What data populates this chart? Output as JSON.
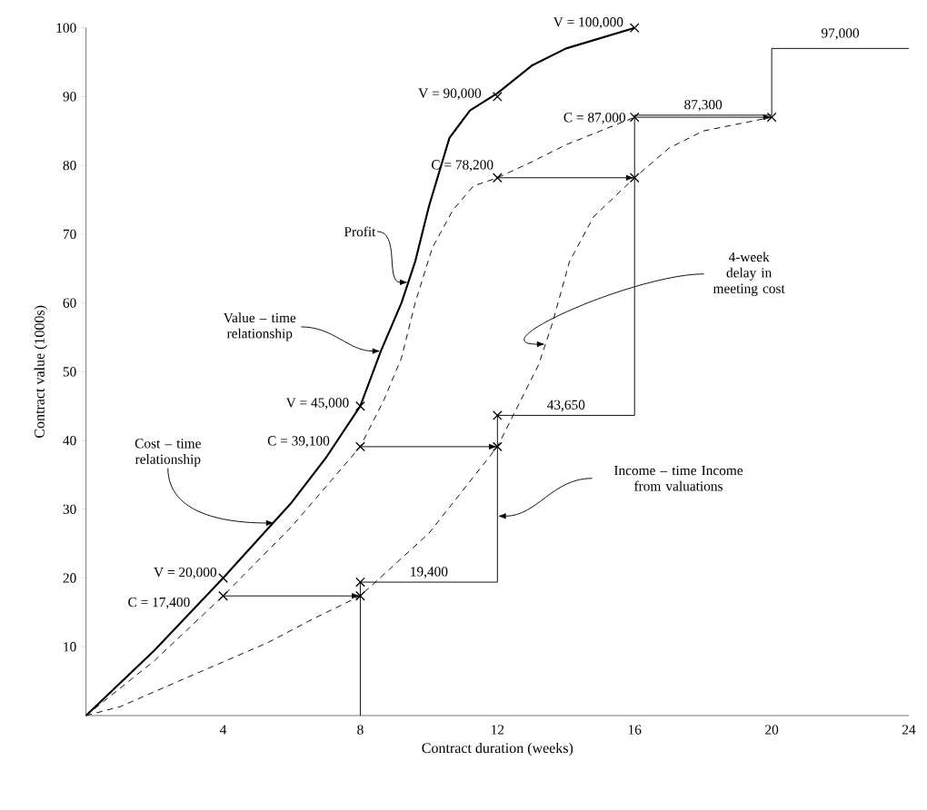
{
  "chart_data": {
    "type": "line",
    "xlabel": "Contract duration (weeks)",
    "ylabel": "Contract value (1000s)",
    "xlim": [
      0,
      24
    ],
    "ylim": [
      0,
      100
    ],
    "xticks": [
      4,
      8,
      12,
      16,
      20,
      24
    ],
    "yticks": [
      10,
      20,
      30,
      40,
      50,
      60,
      70,
      80,
      90,
      100
    ],
    "grid": false,
    "series": [
      {
        "color": "#000000",
        "line_style": "solid",
        "x": [
          0,
          2,
          4,
          6,
          7,
          8,
          8.6,
          9.2,
          9.6,
          10,
          10.6,
          11.2,
          12,
          13,
          14,
          16
        ],
        "values": [
          0,
          9.5,
          20,
          31,
          37.5,
          45,
          53,
          60,
          66,
          74,
          84,
          88,
          90.5,
          94.5,
          97,
          100
        ]
      },
      {
        "color": "#000000",
        "line_style": "dashed",
        "x": [
          0,
          2,
          4,
          6,
          8,
          8.7,
          9.2,
          9.6,
          10.1,
          10.7,
          11.3,
          12,
          13,
          14,
          15,
          16
        ],
        "values": [
          0,
          8,
          17.4,
          27.5,
          39.1,
          46,
          52,
          60,
          68,
          73.5,
          77,
          78.2,
          80.5,
          83,
          85,
          87
        ]
      },
      {
        "color": "#000000",
        "line_style": "dashed",
        "x": [
          0,
          1,
          2.7,
          5.3,
          6.6,
          8,
          10,
          12,
          13.2,
          13.6,
          14.1,
          14.8,
          16,
          17,
          18,
          20
        ],
        "values": [
          0,
          1.3,
          5,
          10.6,
          14,
          17.4,
          26.5,
          39.1,
          51,
          57,
          66,
          72.5,
          78.2,
          82.5,
          85,
          87
        ]
      },
      {
        "color": "#000000",
        "line_style": "solid",
        "x": [
          8,
          8,
          12,
          12,
          16,
          16,
          20,
          20,
          24
        ],
        "values": [
          0,
          19.4,
          19.4,
          43.65,
          43.65,
          87.3,
          87.3,
          97,
          97
        ]
      },
      {
        "color": "#000000",
        "line_style": "solid",
        "x": [
          4,
          8
        ],
        "values": [
          17.4,
          17.4
        ]
      },
      {
        "color": "#000000",
        "line_style": "solid",
        "x": [
          8,
          12
        ],
        "values": [
          39.1,
          39.1
        ]
      },
      {
        "color": "#000000",
        "line_style": "solid",
        "x": [
          12,
          16
        ],
        "values": [
          78.2,
          78.2
        ]
      },
      {
        "color": "#000000",
        "line_style": "solid",
        "x": [
          16,
          20
        ],
        "values": [
          87,
          87
        ]
      },
      {
        "type": "scatter",
        "color": "#000000",
        "marker": "cross",
        "x": [
          4,
          4,
          8,
          8,
          8,
          8,
          12,
          12,
          12,
          12,
          16,
          16,
          16,
          20
        ],
        "values": [
          20,
          17.4,
          45,
          39.1,
          19.4,
          17.4,
          90,
          78.2,
          43.65,
          39.1,
          100,
          87,
          78.2,
          87
        ]
      }
    ],
    "annotations": [
      {
        "text": "V = 100,000",
        "x": 16,
        "y": 100
      },
      {
        "text": "V = 90,000",
        "x": 12,
        "y": 90
      },
      {
        "text": "C = 78,200",
        "x": 12,
        "y": 78.2
      },
      {
        "text": "C = 87,000",
        "x": 16,
        "y": 87
      },
      {
        "text": "87,300",
        "x": 18,
        "y": 87.3
      },
      {
        "text": "97,000",
        "x": 22,
        "y": 97
      },
      {
        "text": "V = 45,000",
        "x": 8,
        "y": 45
      },
      {
        "text": "C = 39,100",
        "x": 8,
        "y": 39.1
      },
      {
        "text": "43,650",
        "x": 14,
        "y": 43.65
      },
      {
        "text": "V = 20,000",
        "x": 4,
        "y": 20
      },
      {
        "text": "C = 17,400",
        "x": 4,
        "y": 17.4
      },
      {
        "text": "19,400",
        "x": 10,
        "y": 19.4
      },
      {
        "text": "Profit",
        "x": 9.4,
        "y": 63
      },
      {
        "text": "Value – time relationship",
        "x": 8.6,
        "y": 53
      },
      {
        "text": "Cost – time relationship",
        "x": 5.5,
        "y": 28
      },
      {
        "text": "4-week delay in meeting cost",
        "x": 13.4,
        "y": 54
      },
      "Income – time Income from valuations"
    ]
  }
}
